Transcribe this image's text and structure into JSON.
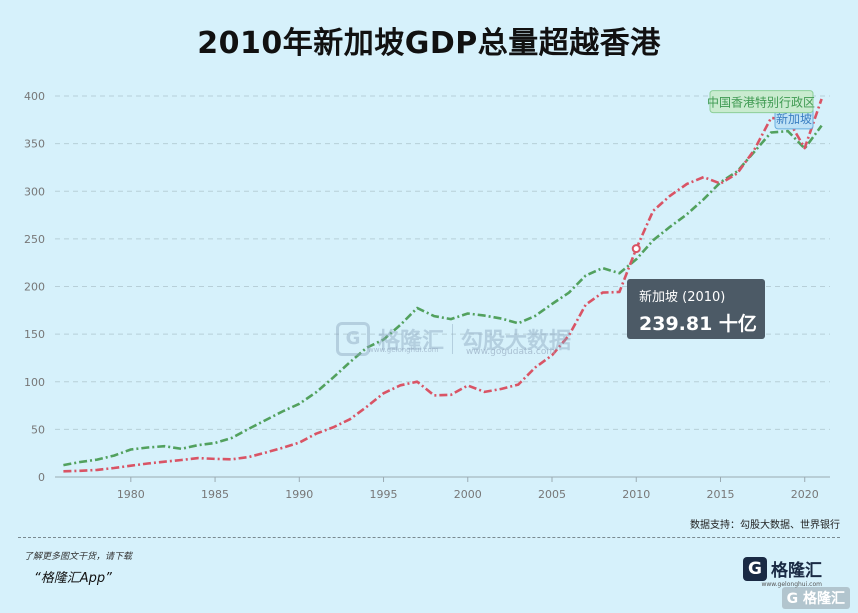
{
  "title": "2010年新加坡GDP总量超越香港",
  "source_note": "数据支持：勾股大数据、世界银行",
  "footer": {
    "note": "了解更多图文干货，请下载",
    "app": "“格隆汇App”"
  },
  "brand": {
    "mark": "G",
    "name": "格隆汇",
    "sub": "www.gelonghui.com",
    "corner": "G 格隆汇"
  },
  "watermark": {
    "mark": "G",
    "left": "格隆汇",
    "right": "勾股大数据",
    "left_url": "www.gelonghui.com",
    "right_url": "www.gogudata.com"
  },
  "tooltip": {
    "series_year": "新加坡 (2010)",
    "value_text": "239.81 十亿"
  },
  "colors": {
    "singapore": "#d95465",
    "hongkong": "#52a15e",
    "grid": "#b7cfd8",
    "axis_text": "#777777"
  },
  "chart_data": {
    "type": "line",
    "x": [
      1976,
      1977,
      1978,
      1979,
      1980,
      1981,
      1982,
      1983,
      1984,
      1985,
      1986,
      1987,
      1988,
      1989,
      1990,
      1991,
      1992,
      1993,
      1994,
      1995,
      1996,
      1997,
      1998,
      1999,
      2000,
      2001,
      2002,
      2003,
      2004,
      2005,
      2006,
      2007,
      2008,
      2009,
      2010,
      2011,
      2012,
      2013,
      2014,
      2015,
      2016,
      2017,
      2018,
      2019,
      2020,
      2021
    ],
    "series": [
      {
        "name": "新加坡",
        "color": "#d95465",
        "values": [
          6,
          6.5,
          7.5,
          9.5,
          11.9,
          14.2,
          16.1,
          17.8,
          19.8,
          19,
          18.6,
          21,
          25.6,
          30.5,
          36.1,
          45.5,
          52.1,
          60.6,
          73.7,
          87.9,
          96.3,
          100.1,
          85.7,
          86.3,
          96.1,
          89.3,
          92.5,
          97,
          115,
          127.8,
          148.6,
          180.9,
          193.6,
          194.2,
          239.8,
          279.4,
          295.1,
          307.6,
          314.9,
          308,
          318.8,
          343.3,
          376.9,
          375.5,
          345.3,
          397
        ]
      },
      {
        "name": "中国香港特别行政区",
        "color": "#52a15e",
        "values": [
          12.5,
          15.7,
          18.3,
          22.5,
          28.9,
          31,
          32.3,
          29.6,
          33.5,
          35.7,
          41,
          50.6,
          59.7,
          68.8,
          76.9,
          88.9,
          104.3,
          120.4,
          135.8,
          144.2,
          159.7,
          177.4,
          168.9,
          165.8,
          171.7,
          169.4,
          166.3,
          161.4,
          169.1,
          181.6,
          193.5,
          211.6,
          219.3,
          214,
          228.6,
          248.5,
          262.6,
          275.7,
          291.5,
          309.4,
          320.9,
          341.3,
          361.7,
          363.1,
          344.9,
          368.9
        ]
      }
    ],
    "xticks": [
      1980,
      1985,
      1990,
      1995,
      2000,
      2005,
      2010,
      2015,
      2020
    ],
    "yticks": [
      0,
      50,
      100,
      150,
      200,
      250,
      300,
      350,
      400
    ],
    "xlim": [
      1975.5,
      2021.5
    ],
    "ylim": [
      0,
      400
    ],
    "grid": true,
    "legend_labels": [
      "新加坡",
      "中国香港特别行政区"
    ],
    "highlight": {
      "series": 0,
      "x": 2010
    }
  }
}
